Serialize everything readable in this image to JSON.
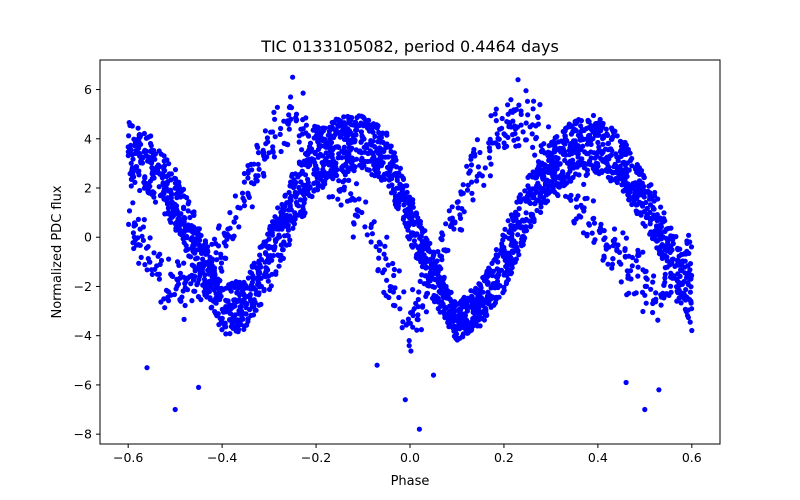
{
  "chart_data": {
    "type": "scatter",
    "title": "TIC 0133105082, period 0.4464 days",
    "xlabel": "Phase",
    "ylabel": "Normalized PDC flux",
    "xlim": [
      -0.66,
      0.66
    ],
    "ylim": [
      -8.4,
      7.2
    ],
    "xticks": [
      -0.6,
      -0.4,
      -0.2,
      0.0,
      0.2,
      0.4,
      0.6
    ],
    "xtick_labels": [
      "−0.6",
      "−0.4",
      "−0.2",
      "0.0",
      "0.2",
      "0.4",
      "0.6"
    ],
    "yticks": [
      -8,
      -6,
      -4,
      -2,
      0,
      2,
      4,
      6
    ],
    "ytick_labels": [
      "−8",
      "−6",
      "−4",
      "−2",
      "0",
      "2",
      "4",
      "6"
    ],
    "grid": false,
    "marker_color": "#0000ff",
    "main_band": {
      "x": [
        -0.6,
        -0.55,
        -0.5,
        -0.45,
        -0.4,
        -0.35,
        -0.3,
        -0.25,
        -0.2,
        -0.15,
        -0.1,
        -0.05,
        0.0,
        0.05,
        0.1,
        0.15,
        0.2,
        0.25,
        0.3,
        0.35,
        0.4,
        0.45,
        0.5,
        0.55,
        0.6
      ],
      "y_upper": [
        4.8,
        4.1,
        2.8,
        0.6,
        -1.9,
        -1.7,
        0.4,
        2.6,
        4.2,
        4.9,
        5.0,
        4.3,
        1.8,
        -0.6,
        -2.7,
        -1.8,
        0.3,
        2.4,
        3.9,
        4.8,
        5.0,
        4.1,
        2.6,
        0.8,
        -1.5
      ],
      "y_lower": [
        2.1,
        1.6,
        0.3,
        -1.8,
        -4.0,
        -3.8,
        -2.2,
        0.0,
        1.8,
        2.6,
        2.7,
        2.2,
        -0.2,
        -2.6,
        -4.2,
        -3.6,
        -2.2,
        0.1,
        1.7,
        2.4,
        2.6,
        2.0,
        0.4,
        -1.4,
        -3.8
      ]
    },
    "secondary_track": {
      "x": [
        -0.6,
        -0.55,
        -0.5,
        -0.45,
        -0.4,
        -0.35,
        -0.3,
        -0.25,
        -0.2,
        -0.15,
        -0.1,
        -0.05,
        0.0,
        0.05,
        0.1,
        0.15,
        0.2,
        0.25,
        0.3,
        0.35,
        0.4,
        0.45,
        0.5,
        0.55,
        0.6
      ],
      "y": [
        0.8,
        -1.2,
        -2.2,
        -1.8,
        -0.5,
        2.0,
        3.8,
        4.8,
        4.2,
        2.0,
        0.8,
        -1.2,
        -3.4,
        -1.5,
        1.0,
        3.2,
        4.6,
        4.8,
        3.5,
        1.5,
        0.2,
        -1.0,
        -2.0,
        -2.2,
        -0.5
      ],
      "spread": 1.4
    },
    "outliers": [
      {
        "x": -0.5,
        "y": -7.0
      },
      {
        "x": 0.02,
        "y": -7.8
      },
      {
        "x": 0.5,
        "y": -7.0
      },
      {
        "x": -0.25,
        "y": 6.5
      },
      {
        "x": 0.23,
        "y": 6.4
      },
      {
        "x": -0.56,
        "y": -5.3
      },
      {
        "x": -0.45,
        "y": -6.1
      },
      {
        "x": 0.46,
        "y": -5.9
      },
      {
        "x": -0.01,
        "y": -6.6
      },
      {
        "x": 0.53,
        "y": -6.2
      },
      {
        "x": 0.05,
        "y": -5.6
      },
      {
        "x": -0.07,
        "y": -5.2
      }
    ]
  }
}
